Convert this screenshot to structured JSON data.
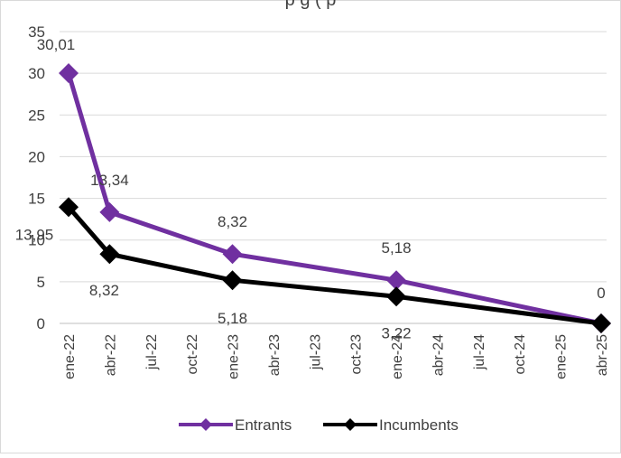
{
  "chart_data": {
    "type": "line",
    "title": "p         g          (     p",
    "xlabel": "",
    "ylabel": "",
    "ylim": [
      0,
      35
    ],
    "yticks": [
      "0",
      "5",
      "10",
      "15",
      "20",
      "25",
      "30",
      "35"
    ],
    "xticks": [
      "ene-22",
      "abr-22",
      "jul-22",
      "oct-22",
      "ene-23",
      "abr-23",
      "jul-23",
      "oct-23",
      "ene-24",
      "abr-24",
      "jul-24",
      "oct-24",
      "ene-25",
      "abr-25"
    ],
    "grid": true,
    "legend": "bottom",
    "series": [
      {
        "name": "Entrants",
        "color": "#7030A0",
        "x": [
          "ene-22",
          "abr-22",
          "ene-23",
          "ene-24",
          "abr-25"
        ],
        "values": [
          30.01,
          13.34,
          8.32,
          5.18,
          0
        ],
        "labels": [
          "30,01",
          "13,34",
          "8,32",
          "5,18",
          "0"
        ]
      },
      {
        "name": "Incumbents",
        "color": "#000000",
        "x": [
          "ene-22",
          "abr-22",
          "ene-23",
          "ene-24",
          "abr-25"
        ],
        "values": [
          13.95,
          8.32,
          5.18,
          3.22,
          0
        ],
        "labels": [
          "13,95",
          "8,32",
          "5,18",
          "3,22",
          ""
        ]
      }
    ]
  }
}
